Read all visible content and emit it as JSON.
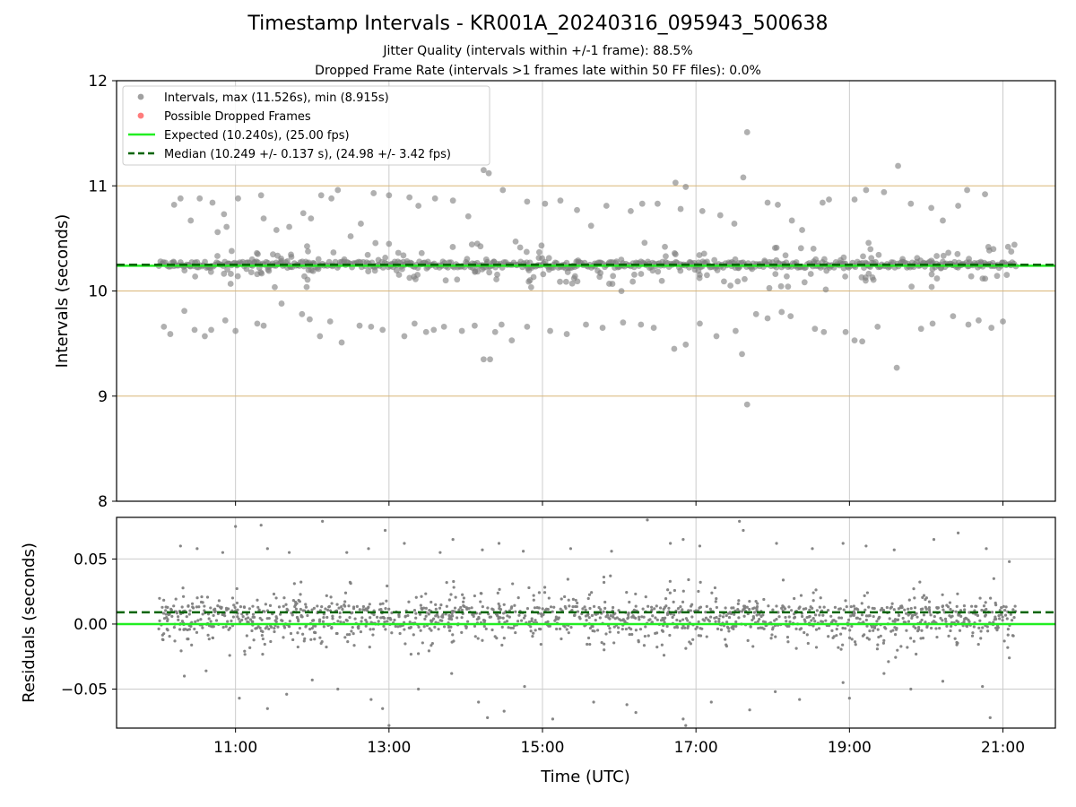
{
  "figure": {
    "title": "Timestamp Intervals - KR001A_20240316_095943_500638",
    "subtitle_jitter": "Jitter Quality (intervals within +/-1 frame): 88.5%",
    "subtitle_dropped": "Dropped Frame Rate (intervals >1 frames late within 50 FF files): 0.0%",
    "xlabel": "Time (UTC)"
  },
  "colors": {
    "points": "#808080",
    "dropped": "#ff5050",
    "expected": "#22ee22",
    "median": "#006400",
    "hgrid_top": "#d9b577",
    "grid": "#cccccc"
  },
  "chart_data": [
    {
      "type": "scatter",
      "ylabel": "Intervals (seconds)",
      "xlim": [
        "09:27",
        "21:41"
      ],
      "ylim": [
        8,
        12
      ],
      "xticks": [
        "11:00",
        "13:00",
        "15:00",
        "17:00",
        "19:00",
        "21:00"
      ],
      "yticks": [
        "8",
        "9",
        "10",
        "11",
        "12"
      ],
      "grid": true,
      "legend_position": "top-left",
      "legend": [
        {
          "label": "Intervals, max (11.526s), min (8.915s)",
          "marker": "point",
          "color": "#808080"
        },
        {
          "label": "Possible Dropped Frames",
          "marker": "point",
          "color": "#ff5050"
        },
        {
          "label": "Expected (10.240s), (25.00 fps)",
          "marker": "line",
          "color": "#22ee22"
        },
        {
          "label": "Median (10.249 +/- 0.137 s), (24.98 +/- 3.42 fps)",
          "marker": "dashed",
          "color": "#006400"
        }
      ],
      "expected_interval": 10.24,
      "median_interval": 10.249,
      "time_range": [
        "10:00",
        "21:10"
      ],
      "max_interval": 11.526,
      "min_interval": 8.915,
      "core_band": [
        10.22,
        10.28
      ],
      "outliers": [
        [
          "10:12",
          10.82
        ],
        [
          "10:17",
          10.88
        ],
        [
          "10:25",
          10.67
        ],
        [
          "10:32",
          10.88
        ],
        [
          "10:42",
          10.84
        ],
        [
          "10:46",
          10.56
        ],
        [
          "10:51",
          10.73
        ],
        [
          "10:53",
          10.61
        ],
        [
          "10:57",
          10.38
        ],
        [
          "11:02",
          10.88
        ],
        [
          "11:20",
          10.91
        ],
        [
          "11:22",
          10.69
        ],
        [
          "11:32",
          10.58
        ],
        [
          "11:42",
          10.61
        ],
        [
          "11:53",
          10.74
        ],
        [
          "11:59",
          10.69
        ],
        [
          "12:07",
          10.91
        ],
        [
          "12:15",
          10.88
        ],
        [
          "12:20",
          10.96
        ],
        [
          "12:30",
          10.52
        ],
        [
          "12:38",
          10.64
        ],
        [
          "12:48",
          10.93
        ],
        [
          "13:00",
          10.91
        ],
        [
          "13:16",
          10.89
        ],
        [
          "13:23",
          10.81
        ],
        [
          "13:36",
          10.88
        ],
        [
          "13:50",
          10.86
        ],
        [
          "14:02",
          10.71
        ],
        [
          "14:09",
          10.45
        ],
        [
          "14:14",
          11.15
        ],
        [
          "14:18",
          11.12
        ],
        [
          "14:29",
          10.96
        ],
        [
          "14:39",
          10.47
        ],
        [
          "14:48",
          10.85
        ],
        [
          "15:02",
          10.83
        ],
        [
          "15:14",
          10.86
        ],
        [
          "15:27",
          10.77
        ],
        [
          "15:38",
          10.62
        ],
        [
          "15:50",
          10.81
        ],
        [
          "16:09",
          10.76
        ],
        [
          "16:18",
          10.83
        ],
        [
          "16:30",
          10.83
        ],
        [
          "16:44",
          11.03
        ],
        [
          "16:48",
          10.78
        ],
        [
          "16:52",
          10.99
        ],
        [
          "17:05",
          10.76
        ],
        [
          "17:19",
          10.72
        ],
        [
          "17:30",
          10.64
        ],
        [
          "17:37",
          11.08
        ],
        [
          "17:40",
          11.51
        ],
        [
          "17:56",
          10.84
        ],
        [
          "18:04",
          10.82
        ],
        [
          "18:15",
          10.67
        ],
        [
          "18:23",
          10.58
        ],
        [
          "18:39",
          10.84
        ],
        [
          "18:44",
          10.87
        ],
        [
          "19:04",
          10.87
        ],
        [
          "19:13",
          10.96
        ],
        [
          "19:27",
          10.94
        ],
        [
          "19:38",
          11.19
        ],
        [
          "19:48",
          10.83
        ],
        [
          "20:04",
          10.79
        ],
        [
          "20:13",
          10.67
        ],
        [
          "20:25",
          10.81
        ],
        [
          "20:32",
          10.96
        ],
        [
          "20:46",
          10.92
        ],
        [
          "21:04",
          10.42
        ],
        [
          "21:09",
          10.44
        ],
        [
          "10:04",
          9.66
        ],
        [
          "10:09",
          9.59
        ],
        [
          "10:20",
          9.81
        ],
        [
          "10:28",
          9.63
        ],
        [
          "10:36",
          9.57
        ],
        [
          "10:41",
          9.63
        ],
        [
          "10:52",
          9.72
        ],
        [
          "11:00",
          9.62
        ],
        [
          "11:17",
          9.69
        ],
        [
          "11:22",
          9.67
        ],
        [
          "11:36",
          9.88
        ],
        [
          "11:52",
          9.78
        ],
        [
          "11:58",
          9.73
        ],
        [
          "12:06",
          9.57
        ],
        [
          "12:14",
          9.71
        ],
        [
          "12:23",
          9.51
        ],
        [
          "12:37",
          9.67
        ],
        [
          "12:46",
          9.66
        ],
        [
          "12:55",
          9.63
        ],
        [
          "13:12",
          9.57
        ],
        [
          "13:20",
          9.69
        ],
        [
          "13:29",
          9.61
        ],
        [
          "13:35",
          9.63
        ],
        [
          "13:43",
          9.66
        ],
        [
          "13:57",
          9.62
        ],
        [
          "14:07",
          9.67
        ],
        [
          "14:14",
          9.35
        ],
        [
          "14:19",
          9.35
        ],
        [
          "14:23",
          9.61
        ],
        [
          "14:28",
          9.68
        ],
        [
          "14:36",
          9.53
        ],
        [
          "14:48",
          9.66
        ],
        [
          "15:06",
          9.62
        ],
        [
          "15:19",
          9.59
        ],
        [
          "15:34",
          9.68
        ],
        [
          "15:47",
          9.65
        ],
        [
          "16:03",
          9.7
        ],
        [
          "16:17",
          9.68
        ],
        [
          "16:27",
          9.65
        ],
        [
          "16:43",
          9.45
        ],
        [
          "16:52",
          9.49
        ],
        [
          "17:03",
          9.69
        ],
        [
          "17:16",
          9.57
        ],
        [
          "17:31",
          9.62
        ],
        [
          "17:36",
          9.4
        ],
        [
          "17:40",
          8.92
        ],
        [
          "17:47",
          9.78
        ],
        [
          "17:56",
          9.74
        ],
        [
          "18:07",
          9.8
        ],
        [
          "18:14",
          9.76
        ],
        [
          "18:33",
          9.64
        ],
        [
          "18:40",
          9.61
        ],
        [
          "18:57",
          9.61
        ],
        [
          "19:04",
          9.53
        ],
        [
          "19:10",
          9.52
        ],
        [
          "19:22",
          9.66
        ],
        [
          "19:37",
          9.27
        ],
        [
          "19:56",
          9.64
        ],
        [
          "20:05",
          9.69
        ],
        [
          "20:21",
          9.76
        ],
        [
          "20:33",
          9.68
        ],
        [
          "20:41",
          9.72
        ],
        [
          "20:51",
          9.65
        ],
        [
          "21:00",
          9.71
        ]
      ]
    },
    {
      "type": "scatter",
      "ylabel": "Residuals (seconds)",
      "xlim": [
        "09:27",
        "21:41"
      ],
      "ylim": [
        -0.08,
        0.082
      ],
      "xticks": [
        "11:00",
        "13:00",
        "15:00",
        "17:00",
        "19:00",
        "21:00"
      ],
      "yticks": [
        "0.05",
        "0.00",
        "−0.05"
      ],
      "ytick_values": [
        0.05,
        0.0,
        -0.05
      ],
      "grid": true,
      "expected_residual": 0.0,
      "median_residual": 0.009,
      "time_range": [
        "10:00",
        "21:10"
      ],
      "core_band": [
        -0.004,
        0.014
      ],
      "outliers": [
        [
          "10:17",
          0.06
        ],
        [
          "10:30",
          0.058
        ],
        [
          "10:50",
          0.055
        ],
        [
          "11:00",
          0.075
        ],
        [
          "11:20",
          0.076
        ],
        [
          "11:25",
          0.058
        ],
        [
          "11:42",
          0.055
        ],
        [
          "12:08",
          0.079
        ],
        [
          "12:27",
          0.055
        ],
        [
          "12:44",
          0.058
        ],
        [
          "12:57",
          0.072
        ],
        [
          "13:12",
          0.062
        ],
        [
          "13:40",
          0.055
        ],
        [
          "13:50",
          0.065
        ],
        [
          "14:13",
          0.057
        ],
        [
          "14:26",
          0.062
        ],
        [
          "14:45",
          0.056
        ],
        [
          "15:22",
          0.058
        ],
        [
          "15:54",
          0.056
        ],
        [
          "16:22",
          0.08
        ],
        [
          "16:40",
          0.062
        ],
        [
          "16:50",
          0.065
        ],
        [
          "17:03",
          0.06
        ],
        [
          "17:34",
          0.079
        ],
        [
          "17:37",
          0.072
        ],
        [
          "18:03",
          0.062
        ],
        [
          "18:31",
          0.058
        ],
        [
          "18:55",
          0.062
        ],
        [
          "19:13",
          0.06
        ],
        [
          "19:35",
          0.057
        ],
        [
          "20:06",
          0.065
        ],
        [
          "20:25",
          0.07
        ],
        [
          "20:47",
          0.058
        ],
        [
          "21:05",
          0.048
        ],
        [
          "10:20",
          -0.04
        ],
        [
          "10:37",
          -0.036
        ],
        [
          "11:03",
          -0.057
        ],
        [
          "11:25",
          -0.065
        ],
        [
          "11:40",
          -0.054
        ],
        [
          "12:00",
          -0.043
        ],
        [
          "12:20",
          -0.05
        ],
        [
          "12:46",
          -0.058
        ],
        [
          "12:55",
          -0.065
        ],
        [
          "13:00",
          -0.078
        ],
        [
          "13:23",
          -0.05
        ],
        [
          "13:49",
          -0.038
        ],
        [
          "14:10",
          -0.06
        ],
        [
          "14:17",
          -0.072
        ],
        [
          "14:30",
          -0.067
        ],
        [
          "14:46",
          -0.048
        ],
        [
          "15:08",
          -0.073
        ],
        [
          "15:40",
          -0.06
        ],
        [
          "16:06",
          -0.062
        ],
        [
          "16:13",
          -0.068
        ],
        [
          "16:50",
          -0.073
        ],
        [
          "16:52",
          -0.078
        ],
        [
          "17:12",
          -0.06
        ],
        [
          "17:42",
          -0.066
        ],
        [
          "18:02",
          -0.052
        ],
        [
          "18:21",
          -0.058
        ],
        [
          "18:55",
          -0.045
        ],
        [
          "19:00",
          -0.057
        ],
        [
          "19:27",
          -0.038
        ],
        [
          "19:48",
          -0.05
        ],
        [
          "20:13",
          -0.044
        ],
        [
          "20:44",
          -0.048
        ],
        [
          "20:50",
          -0.072
        ],
        [
          "21:05",
          -0.026
        ]
      ]
    }
  ]
}
